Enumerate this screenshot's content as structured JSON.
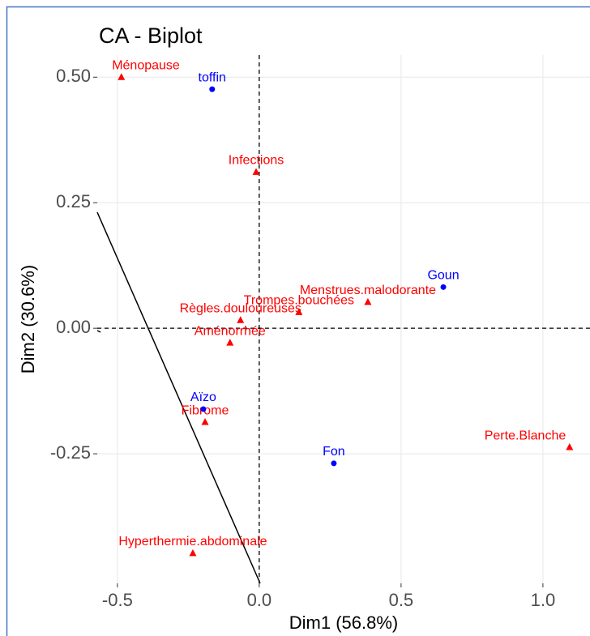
{
  "chart_data": {
    "type": "scatter",
    "title": "CA - Biplot",
    "xlabel": "Dim1 (56.8%)",
    "ylabel": "Dim2 (30.6%)",
    "xlim": [
      -0.571,
      1.166
    ],
    "ylim": [
      -0.508,
      0.544
    ],
    "xticks": [
      {
        "value": -0.5,
        "label": "-0.5"
      },
      {
        "value": 0,
        "label": "0.0"
      },
      {
        "value": 0.5,
        "label": "0.5"
      },
      {
        "value": 1,
        "label": "1.0"
      }
    ],
    "yticks": [
      {
        "value": 0.5,
        "label": "0.50"
      },
      {
        "value": 0.25,
        "label": "0.25"
      },
      {
        "value": 0,
        "label": "0.00"
      },
      {
        "value": -0.25,
        "label": "-0.25"
      }
    ],
    "grid": true,
    "series": [
      {
        "color": "#ff0000",
        "marker": "triangle",
        "labels": [
          "Ménopause",
          "Infections",
          "Trompes.bouchées",
          "Règles.douloureuses",
          "Menstrues.malodorante",
          "Aménorrhée",
          "Fibrome",
          "Perte.Blanche",
          "Hyperthermie.abdominale"
        ],
        "x": [
          -0.486,
          -0.011,
          0.14,
          -0.066,
          0.383,
          -0.103,
          -0.191,
          1.094,
          -0.234
        ],
        "values": [
          0.5,
          0.311,
          0.032,
          0.016,
          0.052,
          -0.029,
          -0.187,
          -0.237,
          -0.448
        ]
      },
      {
        "color": "#0000ff",
        "marker": "circle",
        "labels": [
          "toffin",
          "Goun",
          "Aïzo",
          "Fon"
        ],
        "x": [
          -0.166,
          0.649,
          -0.197,
          0.263
        ],
        "values": [
          0.476,
          0.082,
          -0.161,
          -0.269
        ]
      }
    ]
  }
}
